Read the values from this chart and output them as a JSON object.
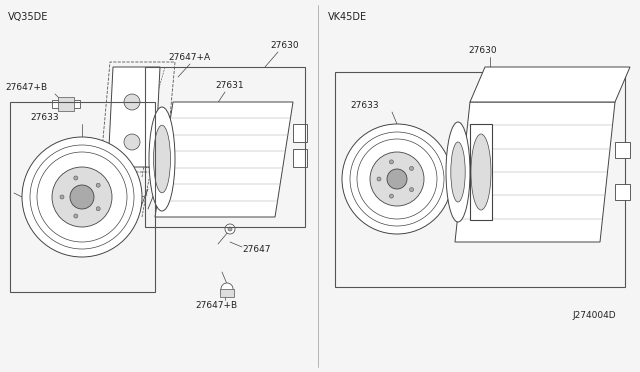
{
  "bg_color": "#f5f5f5",
  "fig_width": 6.4,
  "fig_height": 3.72,
  "dpi": 100,
  "left_label": "VQ35DE",
  "right_label": "VK45DE",
  "diagram_number": "J274004D",
  "text_color": "#222222",
  "line_color": "#444444",
  "lw": 0.7
}
